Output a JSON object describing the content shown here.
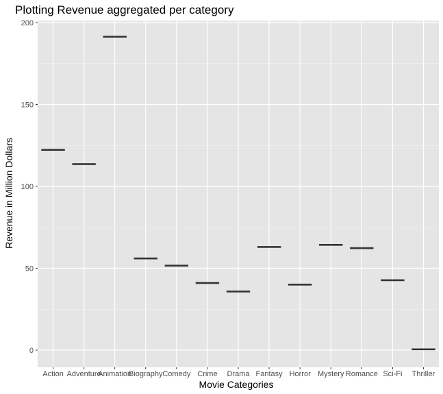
{
  "chart_data": {
    "type": "bar",
    "title": "Plotting Revenue aggregated per category",
    "xlabel": "Movie Categories",
    "ylabel": "Revenue in Million Dollars",
    "categories": [
      "Action",
      "Adventure",
      "Animation",
      "Biography",
      "Comedy",
      "Crime",
      "Drama",
      "Fantasy",
      "Horror",
      "Mystery",
      "Romance",
      "Sci-Fi",
      "Thriller"
    ],
    "values": [
      122.3,
      113.6,
      191.4,
      56.0,
      51.6,
      41.0,
      35.8,
      63.0,
      40.0,
      64.3,
      62.3,
      42.7,
      0.5
    ],
    "ylim": [
      -10,
      200
    ],
    "yticks": [
      0,
      50,
      100,
      150,
      200
    ],
    "grid": true,
    "colors": {
      "panel": "#e5e5e5",
      "grid_major": "#ffffff",
      "grid_minor": "#f2f2f2",
      "mark": "#333333"
    }
  }
}
